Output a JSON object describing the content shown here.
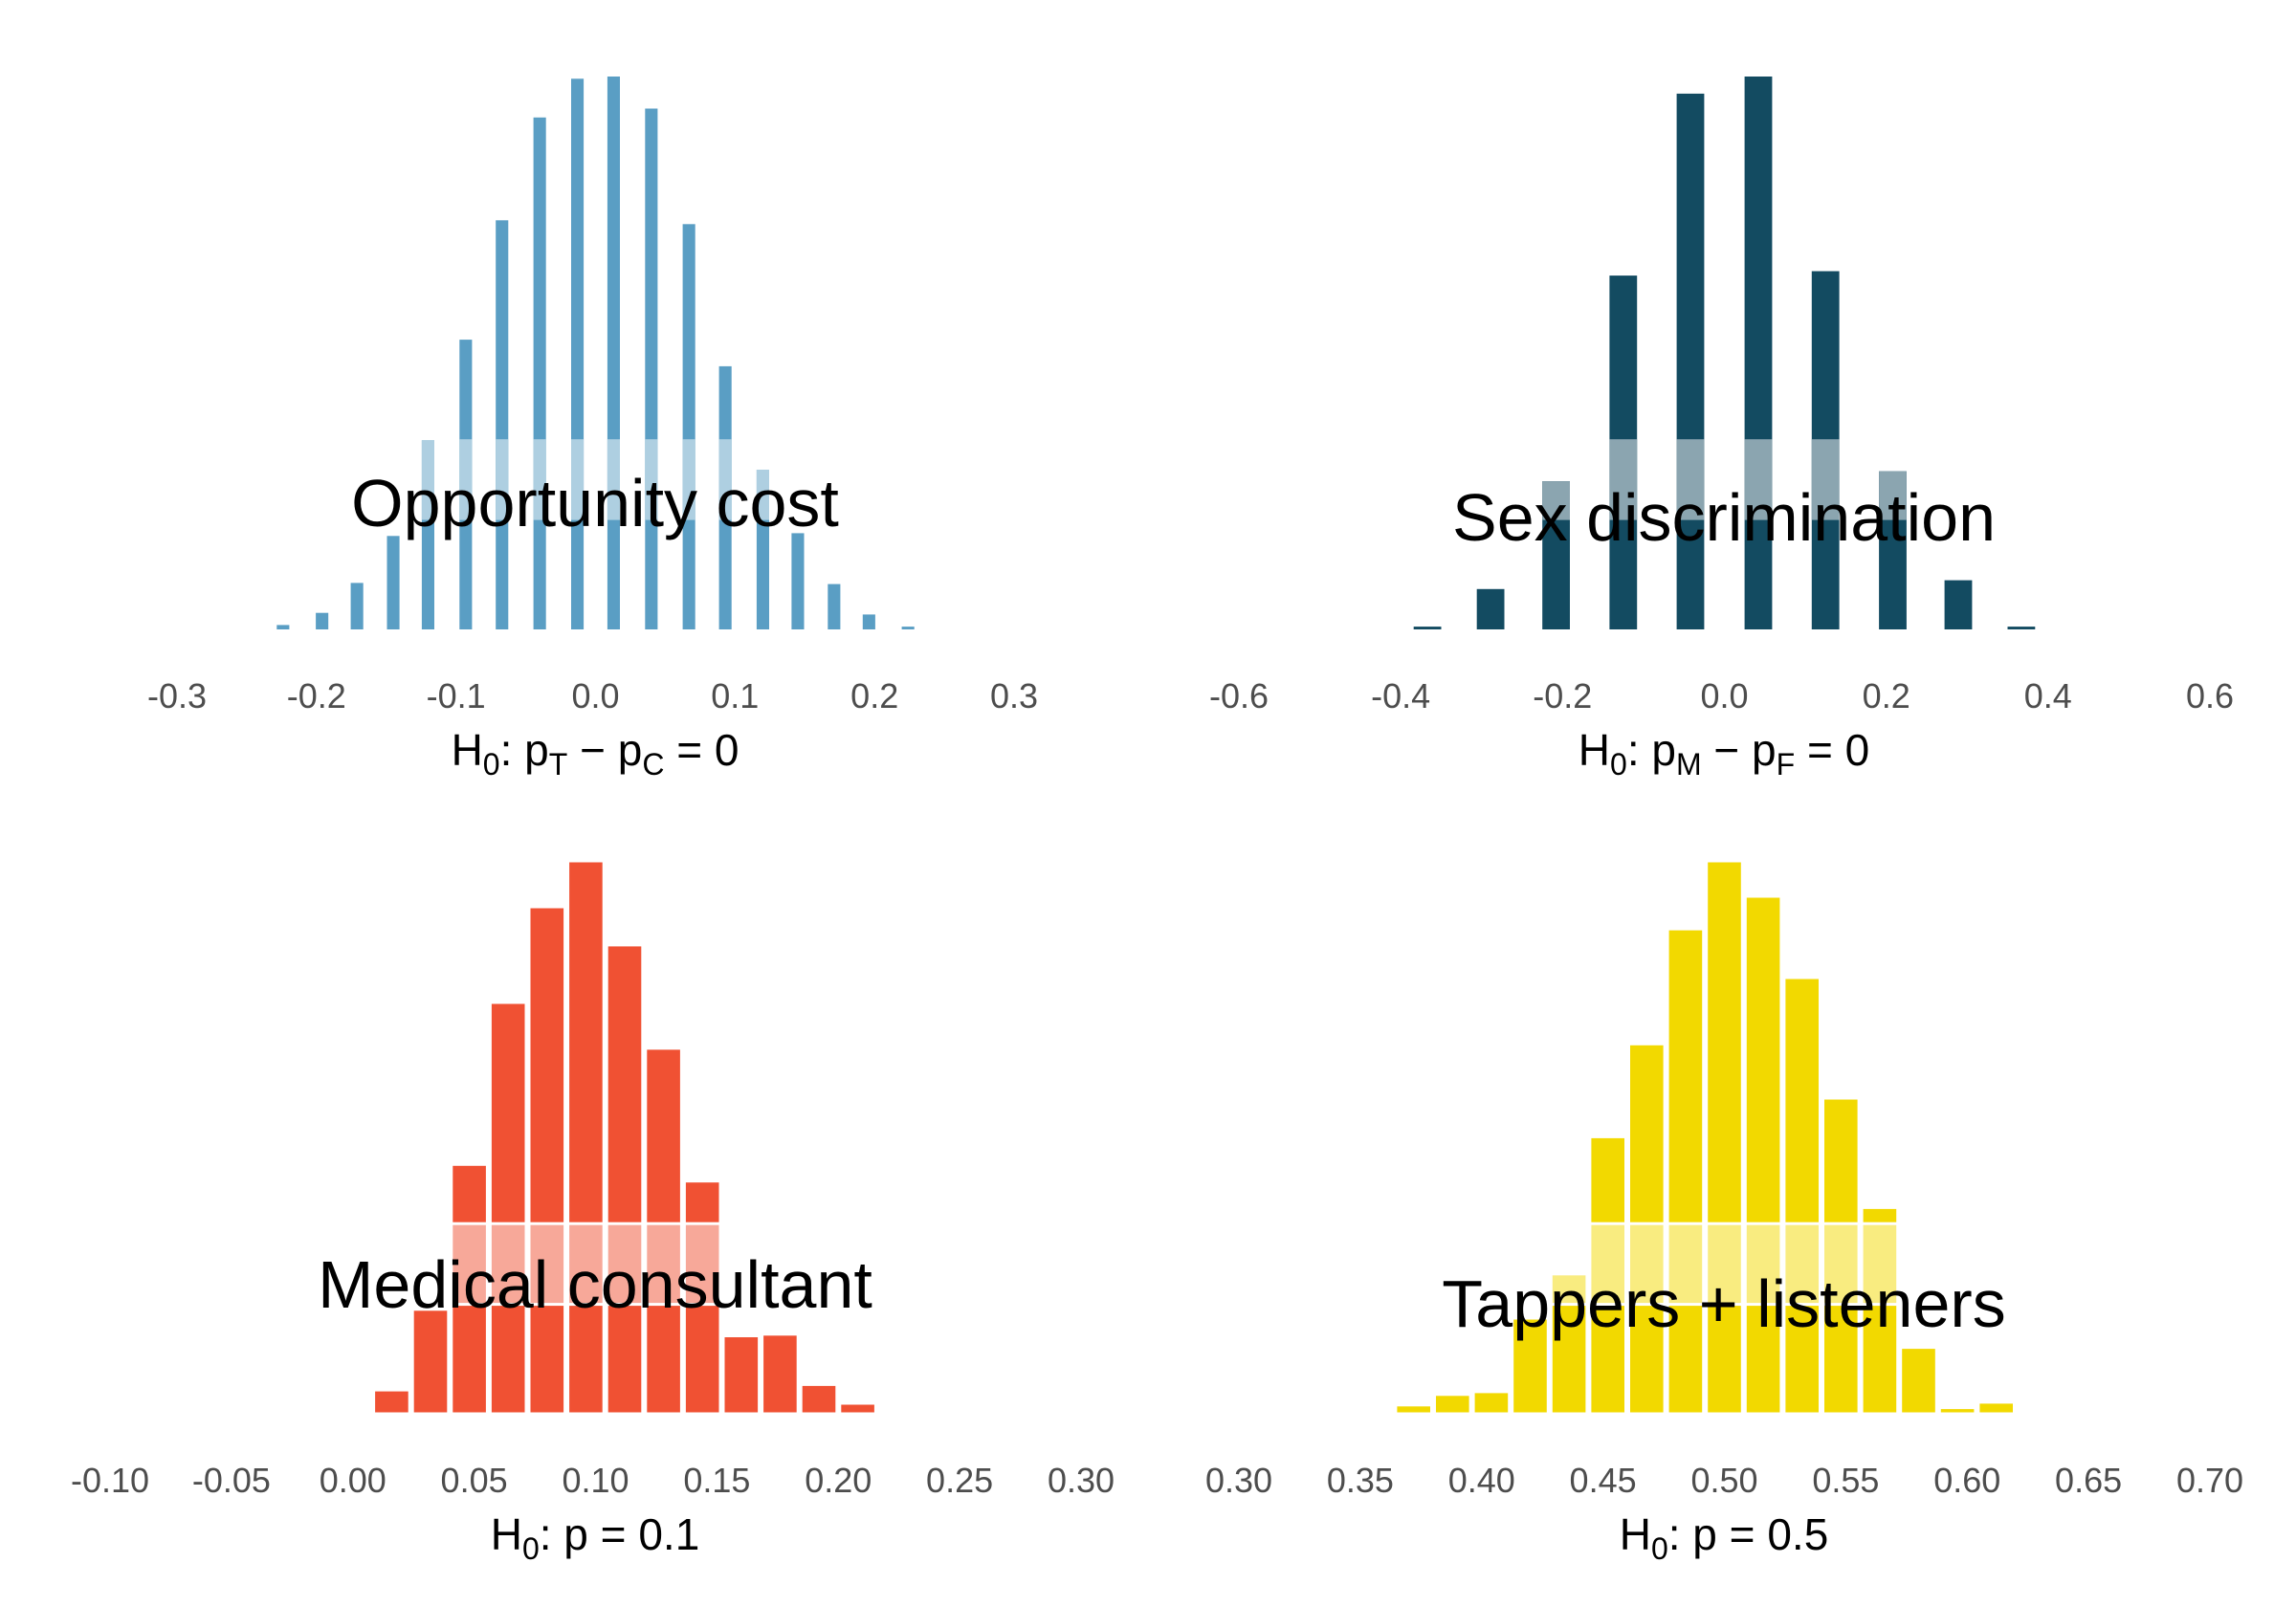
{
  "chart_data": [
    {
      "type": "bar",
      "panel": "opportunity-cost",
      "title": "Opportunity cost",
      "color": "#5a9ec4",
      "highlight_color": "#aecfe1",
      "xlabel": {
        "main": "H",
        "sub0": "0",
        "colon": ":",
        "p1": "p",
        "sub1": "T",
        "minus": "−",
        "p2": "p",
        "sub2": "C",
        "eq": "=",
        "val": "0"
      },
      "xlim": [
        -0.3,
        0.3
      ],
      "ticks": [
        -0.3,
        -0.2,
        -0.1,
        0.0,
        0.1,
        0.2,
        0.3
      ],
      "tick_labels": [
        "-0.3",
        "-0.2",
        "-0.1",
        "0.0",
        "0.1",
        "0.2",
        "0.3"
      ],
      "bar_width": 0.009,
      "ymax": 1.0,
      "highlight_band": [
        0.342,
        0.342
      ],
      "bars": [
        {
          "x": -0.224,
          "y": 0.008
        },
        {
          "x": -0.196,
          "y": 0.03
        },
        {
          "x": -0.171,
          "y": 0.084
        },
        {
          "x": -0.145,
          "y": 0.169
        },
        {
          "x": -0.12,
          "y": 0.342
        },
        {
          "x": -0.093,
          "y": 0.524
        },
        {
          "x": -0.067,
          "y": 0.74
        },
        {
          "x": -0.04,
          "y": 0.926
        },
        {
          "x": -0.013,
          "y": 0.996
        },
        {
          "x": 0.013,
          "y": 1.0
        },
        {
          "x": 0.04,
          "y": 0.942
        },
        {
          "x": 0.067,
          "y": 0.733
        },
        {
          "x": 0.093,
          "y": 0.476
        },
        {
          "x": 0.12,
          "y": 0.289
        },
        {
          "x": 0.145,
          "y": 0.174
        },
        {
          "x": 0.171,
          "y": 0.082
        },
        {
          "x": 0.196,
          "y": 0.027
        },
        {
          "x": 0.224,
          "y": 0.005
        }
      ]
    },
    {
      "type": "bar",
      "panel": "sex-discrimination",
      "title": "Sex discrimination",
      "color": "#134b61",
      "highlight_color": "#8ba5b0",
      "xlabel": {
        "main": "H",
        "sub0": "0",
        "colon": ":",
        "p1": "p",
        "sub1": "M",
        "minus": "−",
        "p2": "p",
        "sub2": "F",
        "eq": "=",
        "val": "0"
      },
      "xlim": [
        -0.6,
        0.6
      ],
      "ticks": [
        -0.6,
        -0.4,
        -0.2,
        0.0,
        0.2,
        0.4,
        0.6
      ],
      "tick_labels": [
        "-0.6",
        "-0.4",
        "-0.2",
        "0.0",
        "0.2",
        "0.4",
        "0.6"
      ],
      "bar_width": 0.034,
      "ymax": 1.0,
      "highlight_band": [
        0.297,
        0.297
      ],
      "bars": [
        {
          "x": -0.367,
          "y": 0.005
        },
        {
          "x": -0.289,
          "y": 0.073
        },
        {
          "x": -0.208,
          "y": 0.268
        },
        {
          "x": -0.125,
          "y": 0.64
        },
        {
          "x": -0.042,
          "y": 0.969
        },
        {
          "x": 0.042,
          "y": 1.0
        },
        {
          "x": 0.125,
          "y": 0.648
        },
        {
          "x": 0.208,
          "y": 0.286
        },
        {
          "x": 0.289,
          "y": 0.089
        },
        {
          "x": 0.367,
          "y": 0.005
        }
      ]
    },
    {
      "type": "bar",
      "panel": "medical-consultant",
      "title": "Medical consultant",
      "color": "#f05133",
      "highlight_color": "#f7a899",
      "xlabel": {
        "main": "H",
        "sub0": "0",
        "colon": ":",
        "p1": "p",
        "eq": "=",
        "val": "0.1"
      },
      "xlim": [
        -0.1,
        0.3
      ],
      "ticks": [
        -0.1,
        -0.05,
        0.0,
        0.05,
        0.1,
        0.15,
        0.2,
        0.25,
        0.3
      ],
      "tick_labels": [
        "-0.10",
        "-0.05",
        "0.00",
        "0.05",
        "0.10",
        "0.15",
        "0.20",
        "0.25",
        "0.30"
      ],
      "bar_width": 0.0148,
      "ymax": 1.0,
      "highlight_band": [
        0.346,
        0.346
      ],
      "bars": [
        {
          "x": 0.0,
          "y": 0.003
        },
        {
          "x": 0.016,
          "y": 0.043
        },
        {
          "x": 0.032,
          "y": 0.189
        },
        {
          "x": 0.048,
          "y": 0.451
        },
        {
          "x": 0.064,
          "y": 0.744
        },
        {
          "x": 0.08,
          "y": 0.917
        },
        {
          "x": 0.096,
          "y": 1.0
        },
        {
          "x": 0.112,
          "y": 0.848
        },
        {
          "x": 0.128,
          "y": 0.661
        },
        {
          "x": 0.144,
          "y": 0.421
        },
        {
          "x": 0.16,
          "y": 0.141
        },
        {
          "x": 0.176,
          "y": 0.144
        },
        {
          "x": 0.192,
          "y": 0.053
        },
        {
          "x": 0.208,
          "y": 0.019
        },
        {
          "x": 0.224,
          "y": 0.005
        }
      ]
    },
    {
      "type": "bar",
      "panel": "tappers-listeners",
      "title": "Tappers + listeners",
      "color": "#f2d900",
      "highlight_color": "#f9ec80",
      "xlabel": {
        "main": "H",
        "sub0": "0",
        "colon": ":",
        "p1": "p",
        "eq": "=",
        "val": "0.5"
      },
      "xlim": [
        0.3,
        0.7
      ],
      "ticks": [
        0.3,
        0.35,
        0.4,
        0.45,
        0.5,
        0.55,
        0.6,
        0.65,
        0.7
      ],
      "tick_labels": [
        "0.30",
        "0.35",
        "0.40",
        "0.45",
        "0.50",
        "0.55",
        "0.60",
        "0.65",
        "0.70"
      ],
      "bar_width": 0.0148,
      "ymax": 1.0,
      "highlight_band": [
        0.298,
        0.298
      ],
      "bars": [
        {
          "x": 0.372,
          "y": 0.016
        },
        {
          "x": 0.388,
          "y": 0.035
        },
        {
          "x": 0.404,
          "y": 0.04
        },
        {
          "x": 0.42,
          "y": 0.173
        },
        {
          "x": 0.436,
          "y": 0.253
        },
        {
          "x": 0.452,
          "y": 0.501
        },
        {
          "x": 0.468,
          "y": 0.669
        },
        {
          "x": 0.484,
          "y": 0.877
        },
        {
          "x": 0.5,
          "y": 1.0
        },
        {
          "x": 0.516,
          "y": 0.936
        },
        {
          "x": 0.532,
          "y": 0.789
        },
        {
          "x": 0.548,
          "y": 0.571
        },
        {
          "x": 0.564,
          "y": 0.373
        },
        {
          "x": 0.58,
          "y": 0.12
        },
        {
          "x": 0.596,
          "y": 0.011
        },
        {
          "x": 0.612,
          "y": 0.021
        },
        {
          "x": 0.628,
          "y": 0.003
        }
      ]
    }
  ]
}
